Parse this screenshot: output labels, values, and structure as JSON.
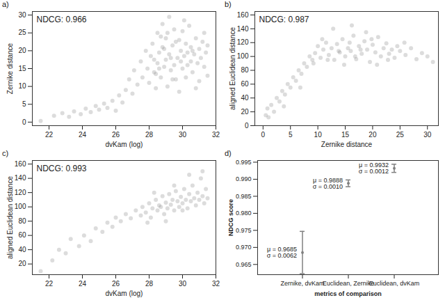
{
  "chart_data": [
    {
      "type": "scatter",
      "panel_label": "a)",
      "annotation": "NDCG: 0.966",
      "x_label": "dvKam (log)",
      "y_label": "Zernike distance",
      "color": "#808080",
      "xlim": [
        21,
        32
      ],
      "xticks": [
        22,
        24,
        26,
        28,
        30,
        32
      ],
      "ylim": [
        -1,
        31
      ],
      "yticks": [
        0,
        5,
        10,
        15,
        20,
        25,
        30
      ],
      "x": [
        21.5,
        22.3,
        22.8,
        23.2,
        23.5,
        23.9,
        24.2,
        24.5,
        24.8,
        25.0,
        25.3,
        25.5,
        25.8,
        26.0,
        26.2,
        26.4,
        26.6,
        26.8,
        27.0,
        27.1,
        27.3,
        27.5,
        27.6,
        27.8,
        27.9,
        28.0,
        28.1,
        28.2,
        28.3,
        28.4,
        28.5,
        28.5,
        28.6,
        28.7,
        28.8,
        28.8,
        28.9,
        29.0,
        29.0,
        29.1,
        29.2,
        29.2,
        29.3,
        29.4,
        29.5,
        29.5,
        29.6,
        29.7,
        29.8,
        29.8,
        29.9,
        30.0,
        30.0,
        30.1,
        30.2,
        30.2,
        30.3,
        30.4,
        30.5,
        30.5,
        30.6,
        30.7,
        30.8,
        30.9,
        31.0,
        31.0,
        31.1,
        31.2,
        31.3,
        31.3,
        31.4,
        31.5,
        31.5,
        28.3,
        28.6,
        28.9,
        29.3,
        29.6,
        29.9,
        30.3,
        30.6,
        29.1,
        28.7,
        30.1,
        29.4,
        30.8,
        28.4
      ],
      "values": [
        0.3,
        1.8,
        2.5,
        1.5,
        3.0,
        2.2,
        3.8,
        2.8,
        4.5,
        3.5,
        5.2,
        4.0,
        6.0,
        3.2,
        7.5,
        5.5,
        9.0,
        12.0,
        8.0,
        14.5,
        10.5,
        17.0,
        12.5,
        20.0,
        15.0,
        11.0,
        18.5,
        22.0,
        14.0,
        9.5,
        16.5,
        25.0,
        19.5,
        12.5,
        21.0,
        27.5,
        15.5,
        17.5,
        23.5,
        10.0,
        19.0,
        29.5,
        14.5,
        21.5,
        16.0,
        26.0,
        12.0,
        18.0,
        23.0,
        8.5,
        20.0,
        15.0,
        25.5,
        18.5,
        22.0,
        12.5,
        19.5,
        27.0,
        17.0,
        21.0,
        14.0,
        19.0,
        23.5,
        16.5,
        20.5,
        11.5,
        18.0,
        22.5,
        25.0,
        15.5,
        19.5,
        21.5,
        13.0,
        17.5,
        15.0,
        20.5,
        18.0,
        22.5,
        17.0,
        16.0,
        20.0,
        25.0,
        24.0,
        28.5,
        12.0,
        9.5,
        13.5
      ]
    },
    {
      "type": "scatter",
      "panel_label": "b)",
      "annotation": "NDCG: 0.987",
      "x_label": "Zernike distance",
      "y_label": "aligned Euclidean distance",
      "color": "#808080",
      "xlim": [
        -1.5,
        32
      ],
      "xticks": [
        0,
        5,
        10,
        15,
        20,
        25,
        30
      ],
      "ylim": [
        0,
        165
      ],
      "yticks": [
        0,
        20,
        40,
        60,
        80,
        100,
        120,
        140,
        160
      ],
      "x": [
        0.5,
        0.8,
        1.0,
        1.5,
        2.0,
        2.5,
        3.0,
        3.5,
        4.0,
        4.5,
        5.0,
        5.5,
        6.0,
        6.5,
        7.0,
        7.5,
        8.0,
        8.5,
        9.0,
        3.8,
        6.8,
        9.5,
        10.0,
        10.5,
        11.0,
        11.5,
        12.0,
        12.5,
        13.0,
        13.5,
        14.0,
        14.5,
        15.0,
        15.5,
        16.0,
        16.5,
        17.0,
        17.5,
        18.0,
        18.5,
        19.0,
        19.5,
        20.0,
        20.5,
        21.0,
        21.5,
        22.0,
        22.5,
        23.0,
        23.5,
        24.0,
        24.5,
        25.0,
        26.0,
        27.0,
        28.0,
        29.0,
        30.0,
        31.0,
        12.8,
        16.2,
        18.8,
        14.8,
        20.8,
        17.8,
        15.8,
        13.8,
        11.8,
        19.8,
        22.8,
        25.8,
        16.8,
        10.8,
        9.2
      ],
      "values": [
        15,
        25,
        12,
        30,
        20,
        40,
        35,
        50,
        45,
        60,
        55,
        70,
        65,
        80,
        75,
        90,
        85,
        100,
        95,
        28,
        55,
        105,
        115,
        98,
        110,
        120,
        102,
        112,
        95,
        118,
        106,
        125,
        100,
        112,
        108,
        130,
        96,
        115,
        104,
        122,
        110,
        92,
        117,
        106,
        128,
        100,
        112,
        119,
        104,
        110,
        98,
        115,
        108,
        102,
        112,
        96,
        105,
        100,
        92,
        140,
        145,
        135,
        88,
        88,
        110,
        120,
        108,
        95,
        125,
        95,
        120,
        100,
        125,
        90
      ]
    },
    {
      "type": "scatter",
      "panel_label": "c)",
      "annotation": "NDCG: 0.993",
      "x_label": "dvKam (log)",
      "y_label": "aligned Euclidean distance",
      "color": "#808080",
      "xlim": [
        21,
        32
      ],
      "xticks": [
        22,
        24,
        26,
        28,
        30,
        32
      ],
      "ylim": [
        5,
        165
      ],
      "yticks": [
        20,
        40,
        60,
        80,
        100,
        120,
        140,
        160
      ],
      "x": [
        21.5,
        22.2,
        22.6,
        23.0,
        23.3,
        23.8,
        24.1,
        24.5,
        24.8,
        25.2,
        25.5,
        25.8,
        26.0,
        26.3,
        26.6,
        26.9,
        27.2,
        27.5,
        27.6,
        27.8,
        28.0,
        28.1,
        28.2,
        28.4,
        28.5,
        28.6,
        28.8,
        28.9,
        29.0,
        29.1,
        29.2,
        29.3,
        29.4,
        29.5,
        29.6,
        29.7,
        29.8,
        29.9,
        30.0,
        30.1,
        30.2,
        30.3,
        30.4,
        30.5,
        30.6,
        30.7,
        30.8,
        30.9,
        31.0,
        31.1,
        31.2,
        31.3,
        31.4,
        31.5,
        28.3,
        29.0,
        27.9,
        30.4,
        31.2,
        29.5,
        28.7,
        30.0
      ],
      "values": [
        10,
        25,
        40,
        35,
        55,
        45,
        60,
        52,
        70,
        65,
        78,
        72,
        85,
        80,
        90,
        84,
        95,
        88,
        100,
        92,
        105,
        85,
        98,
        110,
        95,
        102,
        115,
        90,
        106,
        98,
        118,
        103,
        110,
        95,
        122,
        108,
        100,
        114,
        105,
        125,
        110,
        98,
        118,
        108,
        130,
        112,
        102,
        120,
        110,
        140,
        115,
        105,
        125,
        112,
        120,
        80,
        78,
        145,
        150,
        130,
        100,
        95
      ]
    },
    {
      "type": "errorbar",
      "panel_label": "d)",
      "x_label": "metrics of comparison",
      "y_label": "NDCG score",
      "color": "#808080",
      "categories": [
        "Zernike, dvKam",
        "Euclidean, Zernike",
        "Euclidean, dvKam"
      ],
      "values": [
        0.9685,
        0.9888,
        0.9932
      ],
      "errors": [
        0.0062,
        0.001,
        0.0012
      ],
      "data_labels": true,
      "value_labels": [
        "μ = 0.9685",
        "μ = 0.9888",
        "μ = 0.9932"
      ],
      "error_labels": [
        "σ = 0.0062",
        "σ = 0.0010",
        "σ = 0.0012"
      ],
      "ylim": [
        0.962,
        0.9955
      ],
      "yticks": [
        0.965,
        {
          "value": 0.97,
          "label": "0.970"
        },
        0.975,
        {
          "value": 0.98,
          "label": "0.980"
        },
        0.985,
        {
          "value": 0.99,
          "label": "0.990"
        },
        0.995
      ]
    }
  ]
}
